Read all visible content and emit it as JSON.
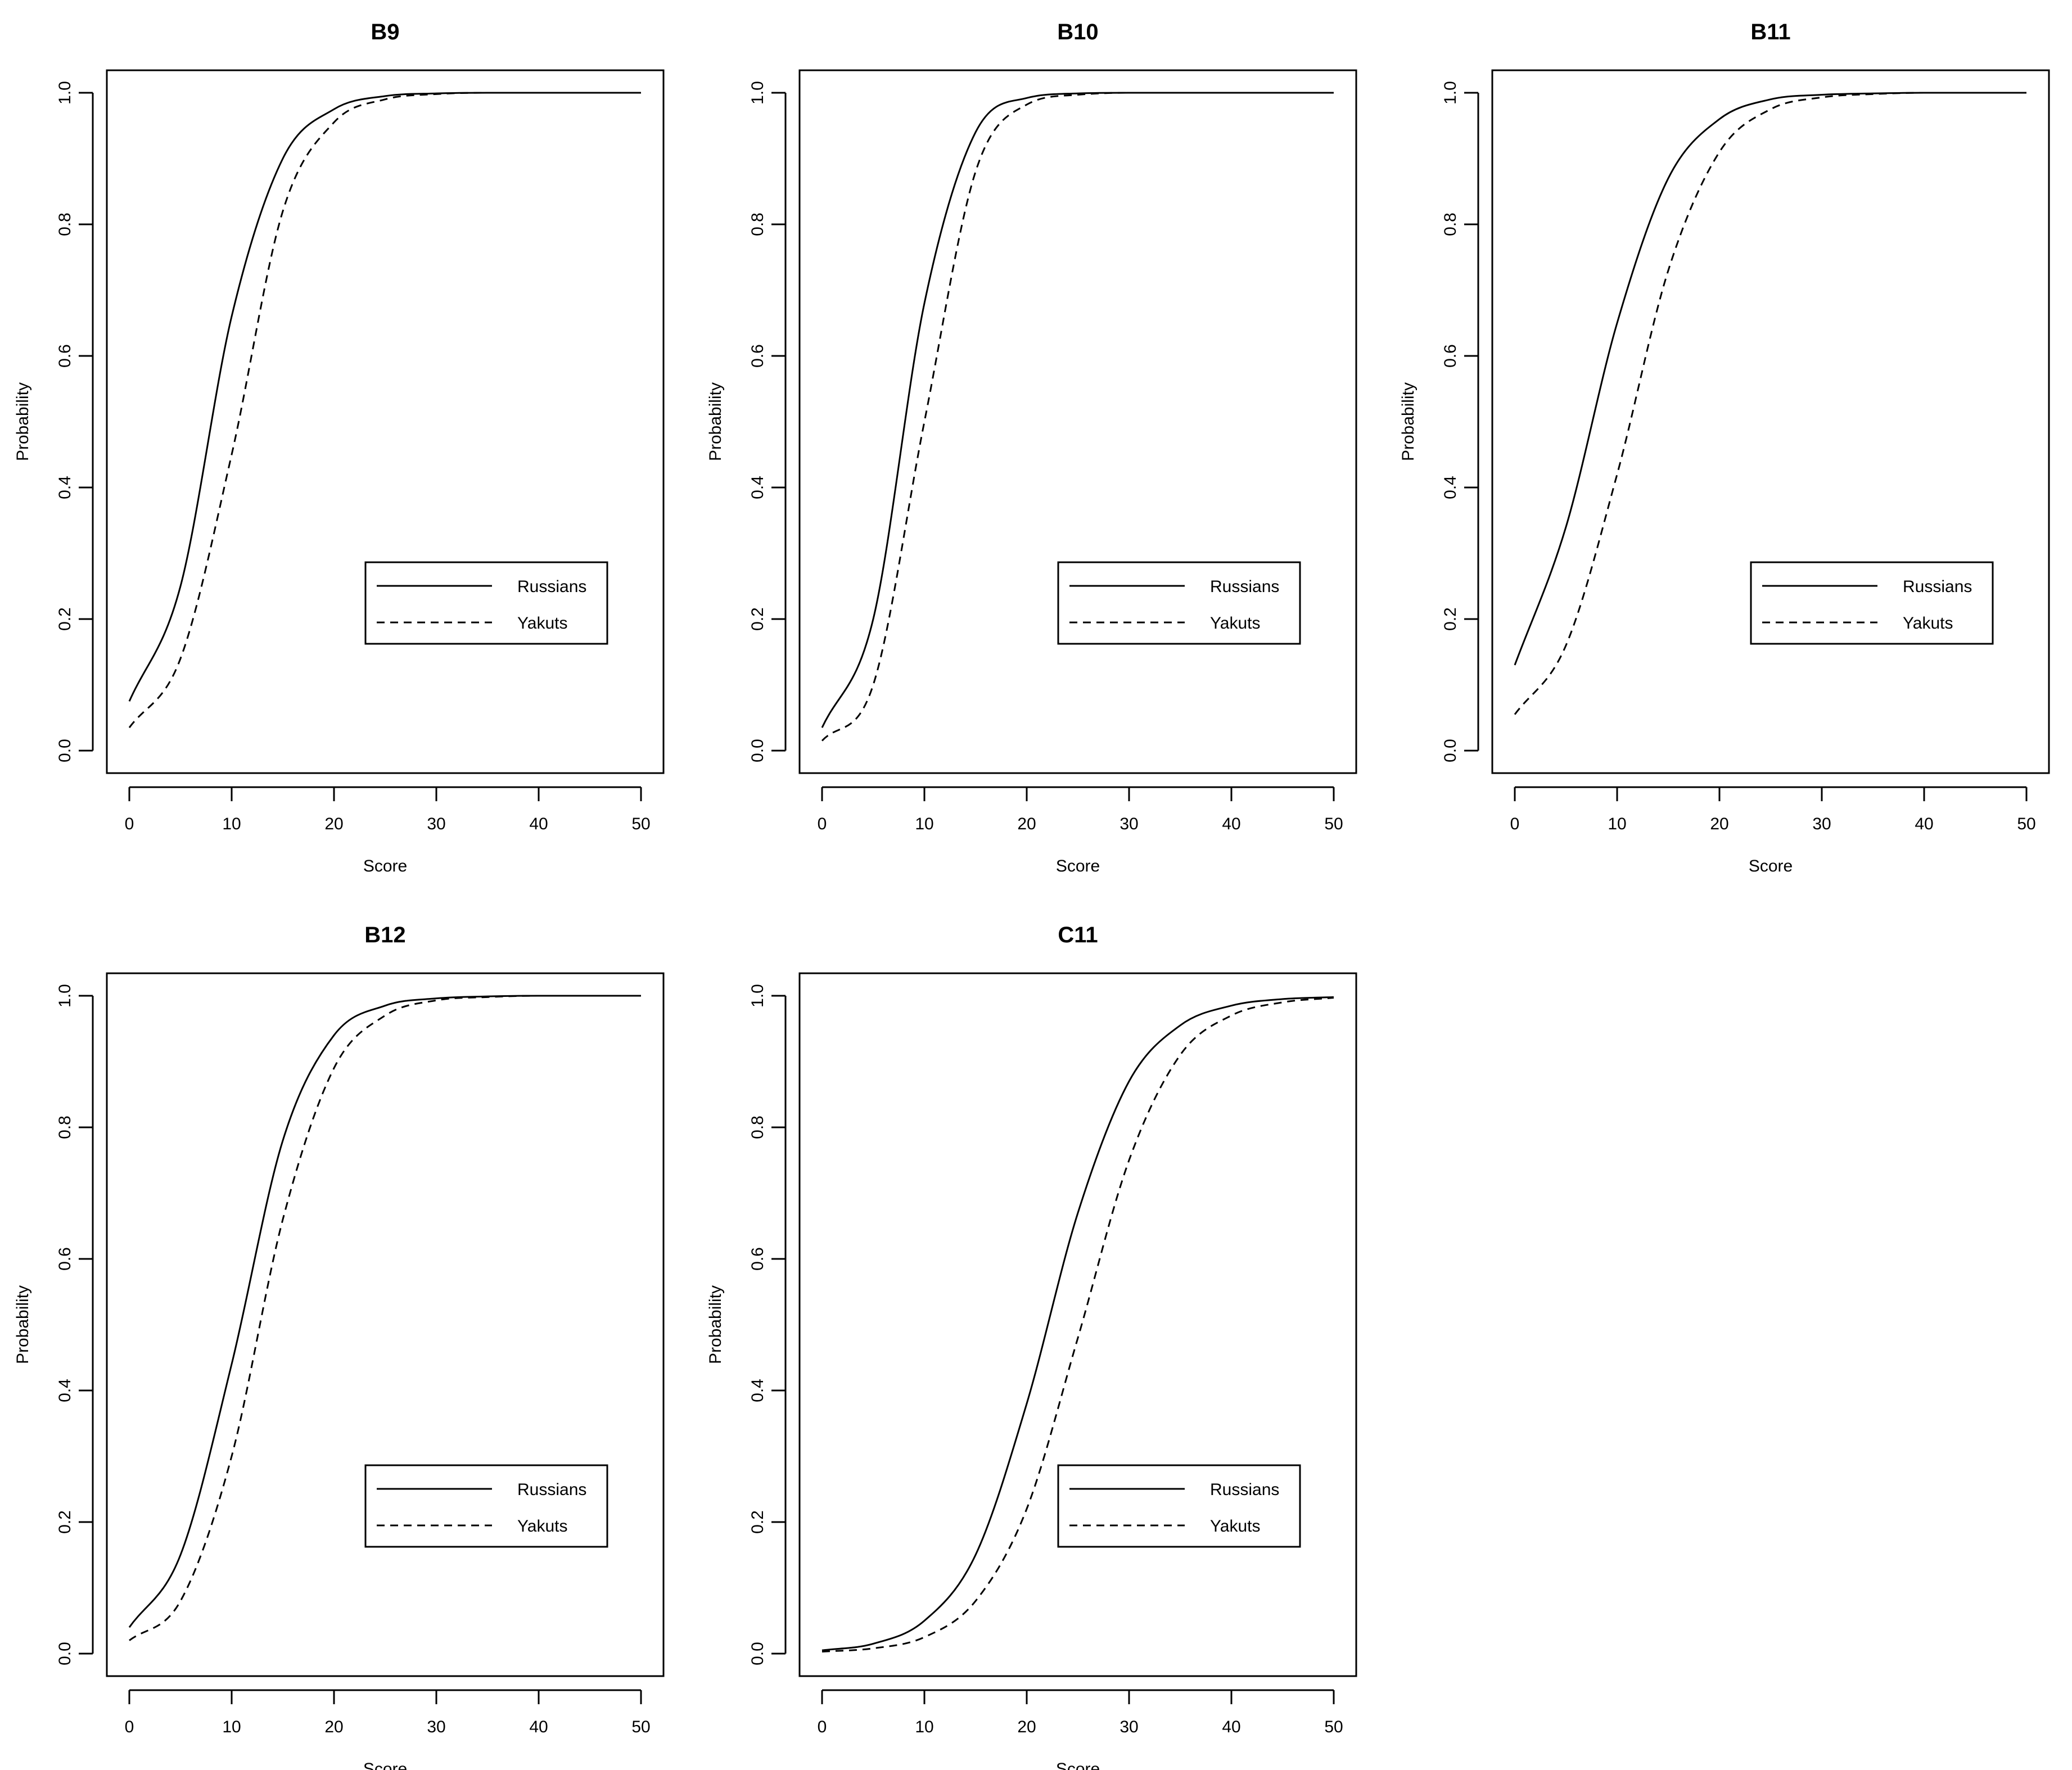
{
  "chart_data": [
    {
      "type": "line",
      "title": "B9",
      "xlabel": "Score",
      "ylabel": "Probability",
      "xlim": [
        0,
        50
      ],
      "ylim": [
        0,
        1
      ],
      "xticks": [
        "0",
        "10",
        "20",
        "30",
        "40",
        "50"
      ],
      "yticks": [
        "0.0",
        "0.2",
        "0.4",
        "0.6",
        "0.8",
        "1.0"
      ],
      "grid": false,
      "legend": {
        "position": "bottom-right",
        "entries": [
          "Russians",
          "Yakuts"
        ]
      },
      "x": [
        0,
        5,
        10,
        15,
        20,
        25,
        30,
        35,
        40,
        45,
        50
      ],
      "series": [
        {
          "name": "Russians",
          "style": "solid",
          "values": [
            0.075,
            0.25,
            0.66,
            0.9,
            0.975,
            0.995,
            0.999,
            1.0,
            1.0,
            1.0,
            1.0
          ]
        },
        {
          "name": "Yakuts",
          "style": "dashed",
          "values": [
            0.035,
            0.14,
            0.45,
            0.82,
            0.955,
            0.99,
            0.998,
            1.0,
            1.0,
            1.0,
            1.0
          ]
        }
      ]
    },
    {
      "type": "line",
      "title": "B10",
      "xlabel": "Score",
      "ylabel": "Probability",
      "xlim": [
        0,
        50
      ],
      "ylim": [
        0,
        1
      ],
      "xticks": [
        "0",
        "10",
        "20",
        "30",
        "40",
        "50"
      ],
      "yticks": [
        "0.0",
        "0.2",
        "0.4",
        "0.6",
        "0.8",
        "1.0"
      ],
      "grid": false,
      "legend": {
        "position": "bottom-right",
        "entries": [
          "Russians",
          "Yakuts"
        ]
      },
      "x": [
        0,
        5,
        10,
        15,
        20,
        25,
        30,
        35,
        40,
        45,
        50
      ],
      "series": [
        {
          "name": "Russians",
          "style": "solid",
          "values": [
            0.035,
            0.2,
            0.68,
            0.94,
            0.992,
            0.999,
            1.0,
            1.0,
            1.0,
            1.0,
            1.0
          ]
        },
        {
          "name": "Yakuts",
          "style": "dashed",
          "values": [
            0.015,
            0.1,
            0.5,
            0.88,
            0.982,
            0.997,
            1.0,
            1.0,
            1.0,
            1.0,
            1.0
          ]
        }
      ]
    },
    {
      "type": "line",
      "title": "B11",
      "xlabel": "Score",
      "ylabel": "Probability",
      "xlim": [
        0,
        50
      ],
      "ylim": [
        0,
        1
      ],
      "xticks": [
        "0",
        "10",
        "20",
        "30",
        "40",
        "50"
      ],
      "yticks": [
        "0.0",
        "0.2",
        "0.4",
        "0.6",
        "0.8",
        "1.0"
      ],
      "grid": false,
      "legend": {
        "position": "bottom-right",
        "entries": [
          "Russians",
          "Yakuts"
        ]
      },
      "x": [
        0,
        5,
        10,
        15,
        20,
        25,
        30,
        35,
        40,
        45,
        50
      ],
      "series": [
        {
          "name": "Russians",
          "style": "solid",
          "values": [
            0.13,
            0.34,
            0.65,
            0.87,
            0.96,
            0.99,
            0.997,
            0.999,
            1.0,
            1.0,
            1.0
          ]
        },
        {
          "name": "Yakuts",
          "style": "dashed",
          "values": [
            0.055,
            0.16,
            0.42,
            0.73,
            0.91,
            0.975,
            0.993,
            0.998,
            1.0,
            1.0,
            1.0
          ]
        }
      ]
    },
    {
      "type": "line",
      "title": "B12",
      "xlabel": "Score",
      "ylabel": "Probability",
      "xlim": [
        0,
        50
      ],
      "ylim": [
        0,
        1
      ],
      "xticks": [
        "0",
        "10",
        "20",
        "30",
        "40",
        "50"
      ],
      "yticks": [
        "0.0",
        "0.2",
        "0.4",
        "0.6",
        "0.8",
        "1.0"
      ],
      "grid": false,
      "legend": {
        "position": "bottom-right",
        "entries": [
          "Russians",
          "Yakuts"
        ]
      },
      "x": [
        0,
        5,
        10,
        15,
        20,
        25,
        30,
        35,
        40,
        45,
        50
      ],
      "series": [
        {
          "name": "Russians",
          "style": "solid",
          "values": [
            0.04,
            0.15,
            0.44,
            0.78,
            0.94,
            0.985,
            0.996,
            0.999,
            1.0,
            1.0,
            1.0
          ]
        },
        {
          "name": "Yakuts",
          "style": "dashed",
          "values": [
            0.02,
            0.08,
            0.3,
            0.66,
            0.89,
            0.97,
            0.993,
            0.998,
            1.0,
            1.0,
            1.0
          ]
        }
      ]
    },
    {
      "type": "line",
      "title": "C11",
      "xlabel": "Score",
      "ylabel": "Probability",
      "xlim": [
        0,
        50
      ],
      "ylim": [
        0,
        1
      ],
      "xticks": [
        "0",
        "10",
        "20",
        "30",
        "40",
        "50"
      ],
      "yticks": [
        "0.0",
        "0.2",
        "0.4",
        "0.6",
        "0.8",
        "1.0"
      ],
      "grid": false,
      "legend": {
        "position": "bottom-right",
        "entries": [
          "Russians",
          "Yakuts"
        ]
      },
      "x": [
        0,
        5,
        10,
        15,
        20,
        25,
        30,
        35,
        40,
        45,
        50
      ],
      "series": [
        {
          "name": "Russians",
          "style": "solid",
          "values": [
            0.005,
            0.015,
            0.05,
            0.15,
            0.38,
            0.67,
            0.87,
            0.955,
            0.985,
            0.995,
            0.998
          ]
        },
        {
          "name": "Yakuts",
          "style": "dashed",
          "values": [
            0.003,
            0.008,
            0.025,
            0.08,
            0.22,
            0.48,
            0.75,
            0.91,
            0.97,
            0.99,
            0.997
          ]
        }
      ]
    }
  ]
}
